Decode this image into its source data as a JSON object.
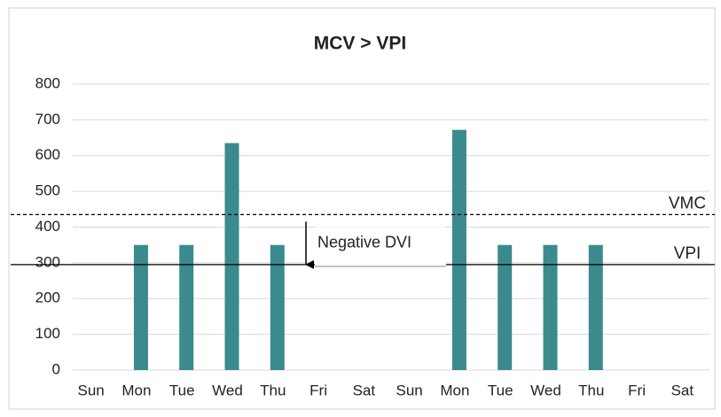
{
  "chart_data": {
    "type": "bar",
    "title": "MCV > VPI",
    "categories": [
      "Sun",
      "Mon",
      "Tue",
      "Wed",
      "Thu",
      "Fri",
      "Sat",
      "Sun",
      "Mon",
      "Tue",
      "Wed",
      "Thu",
      "Fri",
      "Sat"
    ],
    "values": [
      0,
      350,
      350,
      635,
      350,
      0,
      0,
      0,
      672,
      350,
      350,
      350,
      0,
      0
    ],
    "color": "#3b8a8e",
    "ylim": [
      0,
      800
    ],
    "yticks": [
      0,
      100,
      200,
      300,
      400,
      500,
      600,
      700,
      800
    ],
    "grid": true,
    "reference_lines": [
      {
        "label": "VMC",
        "value": 435,
        "style": "dashed"
      },
      {
        "label": "VPI",
        "value": 295,
        "style": "solid"
      }
    ],
    "annotation": {
      "text": "Negative DVI"
    }
  }
}
